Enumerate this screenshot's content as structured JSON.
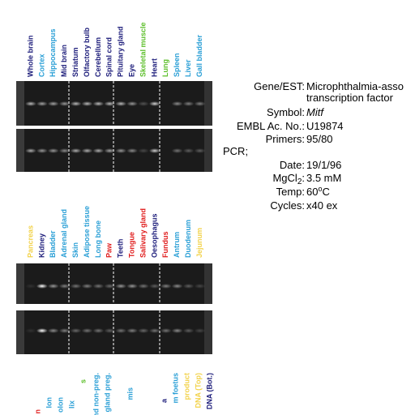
{
  "panels": [
    {
      "labels": [
        {
          "text": "Whole brain",
          "color": "#1c1c7a"
        },
        {
          "text": "Cortex",
          "color": "#2a9fd6"
        },
        {
          "text": "Hippocampus",
          "color": "#2a9fd6"
        },
        {
          "text": "Mid brain",
          "color": "#1c1c7a"
        },
        {
          "text": "Striatum",
          "color": "#1c1c7a"
        },
        {
          "text": "Olfactory bulb",
          "color": "#1c1c7a"
        },
        {
          "text": "Cerebellum",
          "color": "#1c1c7a"
        },
        {
          "text": "Spinal cord",
          "color": "#1c1c7a"
        },
        {
          "text": "Pituitary gland",
          "color": "#1c1c7a"
        },
        {
          "text": "Eye",
          "color": "#1c1c7a"
        },
        {
          "text": "Skeletal muscle",
          "color": "#5cbf2a"
        },
        {
          "text": "Heart",
          "color": "#1c1c7a"
        },
        {
          "text": "Lung",
          "color": "#5cbf2a"
        },
        {
          "text": "Spleen",
          "color": "#2a9fd6"
        },
        {
          "text": "Liver",
          "color": "#2a9fd6"
        },
        {
          "text": "Gall bladder",
          "color": "#2a9fd6"
        }
      ]
    },
    {
      "labels": [
        {
          "text": "Pancreas",
          "color": "#f2d24a"
        },
        {
          "text": "Kidney",
          "color": "#1c1c7a"
        },
        {
          "text": "Bladder",
          "color": "#2a9fd6"
        },
        {
          "text": "Adrenal gland",
          "color": "#2a9fd6"
        },
        {
          "text": "Skin",
          "color": "#2a9fd6"
        },
        {
          "text": "Adipose tissue",
          "color": "#2a9fd6"
        },
        {
          "text": "Long bone",
          "color": "#2a9fd6"
        },
        {
          "text": "Paw",
          "color": "#e01b1b"
        },
        {
          "text": "Teeth",
          "color": "#1c1c7a"
        },
        {
          "text": "Tongue",
          "color": "#e01b1b"
        },
        {
          "text": "Salivary gland",
          "color": "#e01b1b"
        },
        {
          "text": "Oesophagus",
          "color": "#1c1c7a"
        },
        {
          "text": "Fundus",
          "color": "#e01b1b"
        },
        {
          "text": "Antrum",
          "color": "#2a9fd6"
        },
        {
          "text": "Duodenum",
          "color": "#2a9fd6"
        },
        {
          "text": "Jejunum",
          "color": "#f2d24a"
        }
      ]
    },
    {
      "labels": [
        {
          "text": "n",
          "color": "#e01b1b"
        },
        {
          "text": "lon",
          "color": "#2a9fd6"
        },
        {
          "text": "olon",
          "color": "#2a9fd6"
        },
        {
          "text": "lix",
          "color": "#2a9fd6"
        },
        {
          "text": "s",
          "color": "#5cbf2a"
        },
        {
          "text": "gland non-preg.",
          "color": "#2a9fd6"
        },
        {
          "text": "gland preg.",
          "color": "#2a9fd6"
        },
        {
          "text": "mis",
          "color": "#2a9fd6"
        },
        {
          "text": "a",
          "color": "#1c1c7a"
        },
        {
          "text": "m foetus",
          "color": "#2a9fd6"
        },
        {
          "text": "product",
          "color": "#f2d24a"
        },
        {
          "text": "DNA (Top)",
          "color": "#f2d24a"
        },
        {
          "text": "DNA (Bot.)",
          "color": "#1c1c7a"
        }
      ]
    }
  ],
  "info": {
    "gene_label": "Gene/EST:",
    "gene_line1": "Microphthalmia-asso",
    "gene_line2": "transcription factor",
    "symbol_label": "Symbol:",
    "symbol": "Mitf",
    "embl_label": "EMBL Ac. No.:",
    "embl": "U19874",
    "primers_label": "Primers:",
    "primers": "95/80",
    "pcr": "PCR;",
    "date_label": "Date:",
    "date": "19/1/96",
    "mgcl_label": "MgCl",
    "mgcl_sub": "2",
    "mgcl_colon": ":",
    "mgcl": "3.5 mM",
    "temp_label": "Temp:",
    "temp": "60",
    "temp_sup": "o",
    "temp_unit": "C",
    "cycles_label": "Cycles:",
    "cycles": "x40 ex"
  }
}
